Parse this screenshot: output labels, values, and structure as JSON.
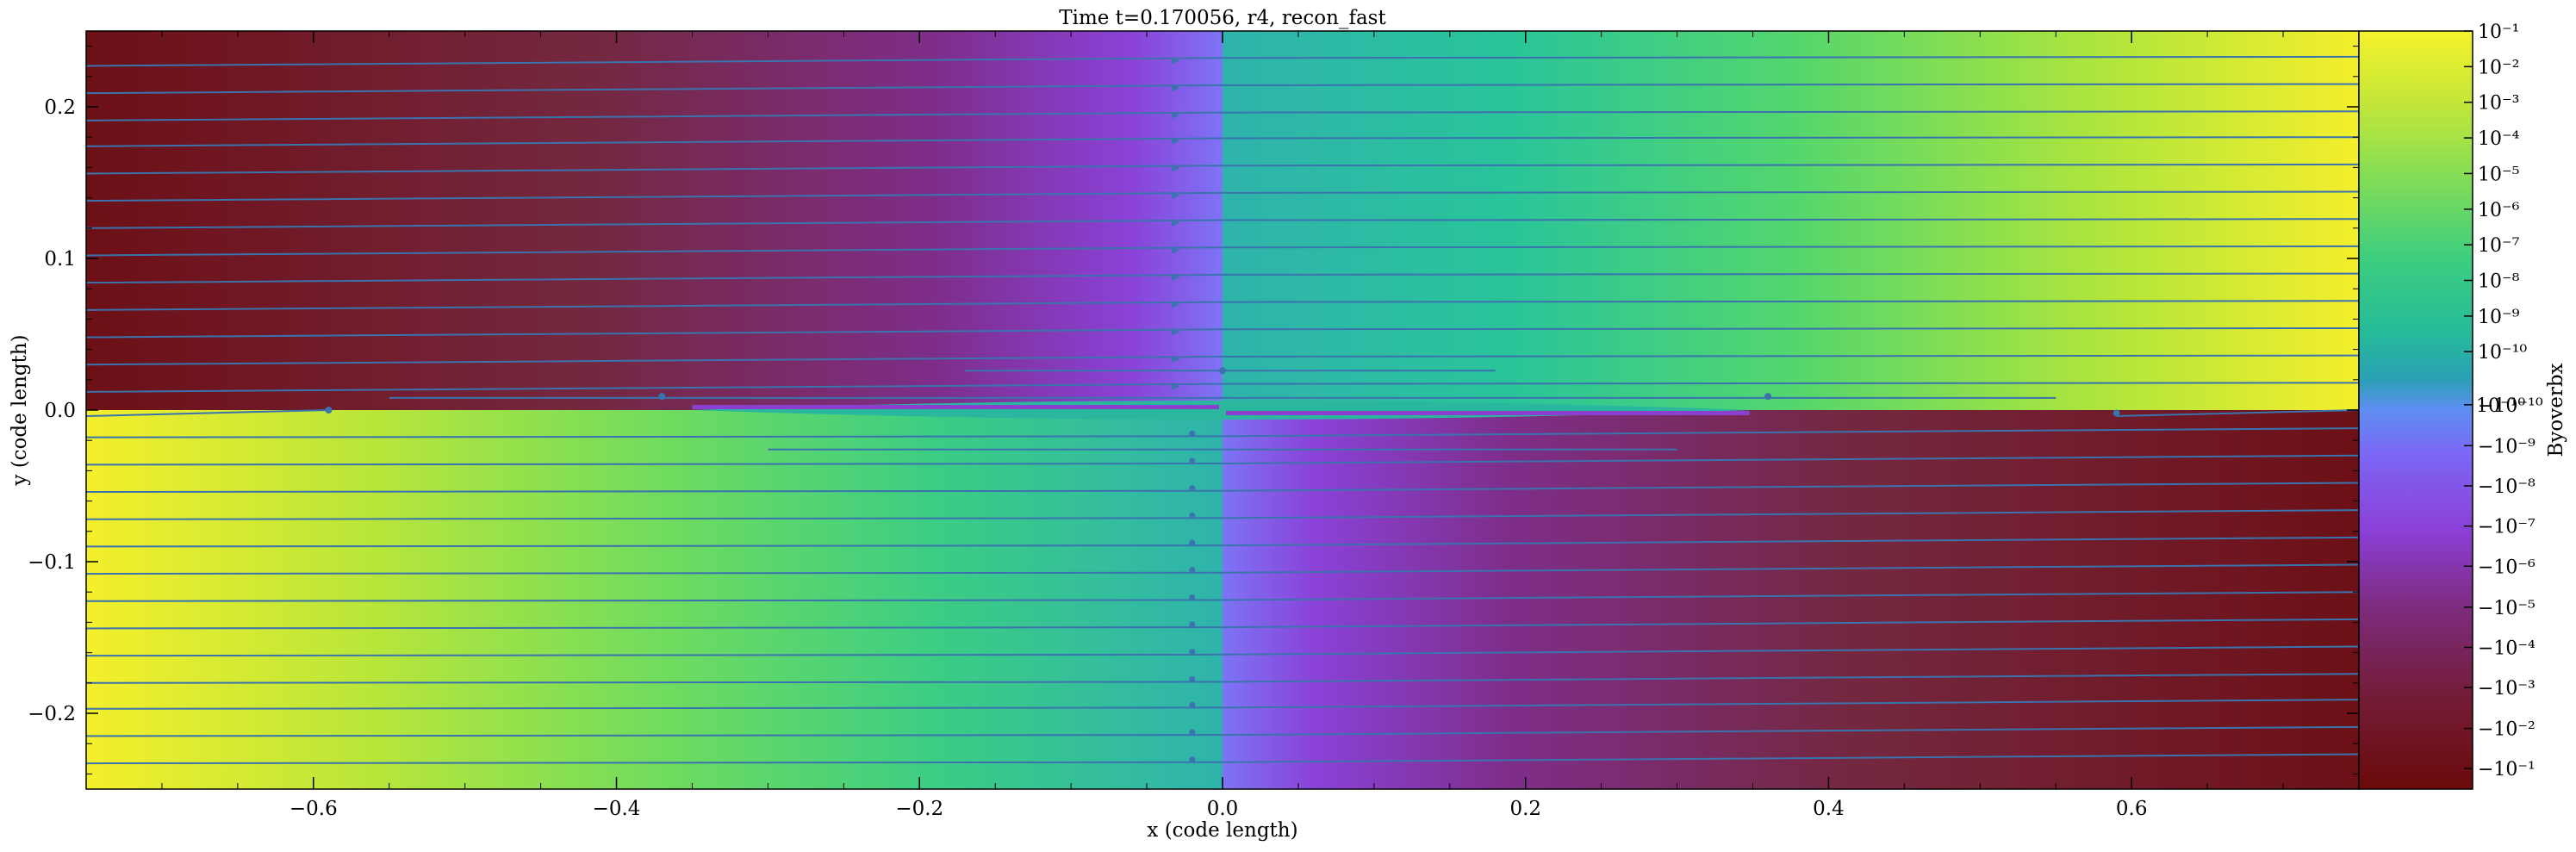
{
  "chart_data": {
    "type": "heatmap",
    "title": "Time t=0.170056, r4, recon_fast",
    "xlabel": "x  (code length)",
    "ylabel": "y  (code length)",
    "xlim": [
      -0.75,
      0.75
    ],
    "ylim": [
      -0.25,
      0.25
    ],
    "x_ticks": [
      -0.6,
      -0.4,
      -0.2,
      0.0,
      0.2,
      0.4,
      0.6
    ],
    "x_tick_labels": [
      "−0.6",
      "−0.4",
      "−0.2",
      "0.0",
      "0.2",
      "0.4",
      "0.6"
    ],
    "y_ticks": [
      0.2,
      0.1,
      0.0,
      -0.1,
      -0.2
    ],
    "y_tick_labels": [
      "0.2",
      "0.1",
      "0.0",
      "−0.1",
      "−0.2"
    ],
    "field": "Byoverbx",
    "colormap_pos": [
      "#2fb3ac",
      "#27c39a",
      "#3fd07e",
      "#72dd5e",
      "#b4e63b",
      "#f1f02b"
    ],
    "colormap_neg": [
      "#7b64f1",
      "#8a40d4",
      "#7f2e8c",
      "#731e3d",
      "#6a0b0b"
    ],
    "quadrant_sign": {
      "upper_left": "negative",
      "upper_right": "positive",
      "lower_left": "positive",
      "lower_right": "negative"
    },
    "current_sheet": {
      "x_range": [
        -0.35,
        0.35
      ],
      "color": "#2bb69e"
    },
    "streamline_color": "#3a73ad",
    "grid": false,
    "colorbar": {
      "label": "Byoverbx",
      "scale": "symlog",
      "tick_labels": [
        "10⁻¹",
        "10⁻²",
        "10⁻³",
        "10⁻⁴",
        "10⁻⁵",
        "10⁻⁶",
        "10⁻⁷",
        "10⁻⁸",
        "10⁻⁹",
        "10⁻¹⁰",
        "−10⁻¹⁰",
        "−10⁻⁹",
        "−10⁻⁸",
        "−10⁻⁷",
        "−10⁻⁶",
        "−10⁻⁵",
        "−10⁻⁴",
        "−10⁻³",
        "−10⁻²",
        "−10⁻¹"
      ],
      "tick_positions": [
        0,
        0.047,
        0.094,
        0.141,
        0.188,
        0.235,
        0.282,
        0.329,
        0.376,
        0.423,
        0.493,
        0.547,
        0.6,
        0.653,
        0.706,
        0.76,
        0.813,
        0.866,
        0.92,
        0.973
      ],
      "extra_label": "10⁻¹⁰"
    }
  }
}
